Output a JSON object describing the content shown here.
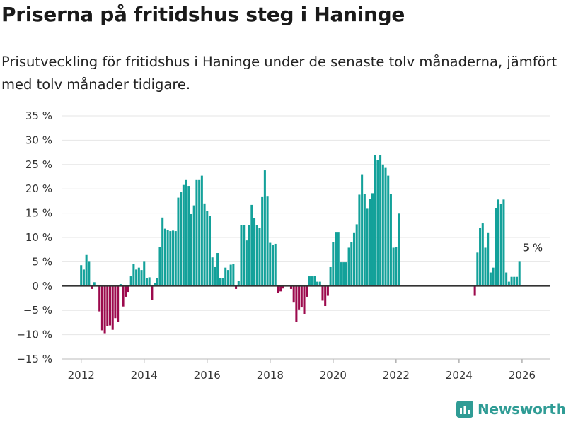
{
  "title": "Priserna på fritidshus steg i Haninge",
  "subtitle": "Prisutveckling för fritidshus i Haninge under de senaste tolv månaderna, jämfört med tolv månader tidigare.",
  "brand": "Newsworthy",
  "colors": {
    "positive": "#13a19a",
    "negative": "#9c0a4d",
    "zero_line": "#333333",
    "grid": "#e6e6e6",
    "brand": "#2f9c95"
  },
  "chart_data": {
    "type": "bar",
    "title": "Priserna på fritidshus steg i Haninge",
    "xlabel": "",
    "ylabel": "",
    "ylim": [
      -15,
      35
    ],
    "xlim": [
      2011.4,
      2026.9
    ],
    "y_ticks": [
      -15,
      -10,
      -5,
      0,
      5,
      10,
      15,
      20,
      25,
      30,
      35
    ],
    "y_tick_labels": [
      "−15 %",
      "−10 %",
      "−5 %",
      "0 %",
      "5 %",
      "10 %",
      "15 %",
      "20 %",
      "25 %",
      "30 %",
      "35 %"
    ],
    "x_ticks": [
      2012,
      2014,
      2016,
      2018,
      2020,
      2022,
      2024,
      2026
    ],
    "x_tick_labels": [
      "2012",
      "2014",
      "2016",
      "2018",
      "2020",
      "2022",
      "2024",
      "2026"
    ],
    "start": 2012.0,
    "step": 0.08333,
    "values": [
      4.3,
      3.4,
      6.4,
      5.0,
      -0.6,
      0.8,
      null,
      -5.2,
      -9.1,
      -9.7,
      -8.3,
      -8.1,
      -9.0,
      -6.6,
      -7.3,
      0.4,
      -4.2,
      -2.2,
      -1.2,
      2.0,
      4.5,
      3.4,
      3.8,
      3.3,
      5.0,
      1.6,
      1.8,
      -2.8,
      0.7,
      1.6,
      8.0,
      14.1,
      11.8,
      11.6,
      11.3,
      11.4,
      11.3,
      18.2,
      19.3,
      20.8,
      21.8,
      20.6,
      14.8,
      16.6,
      21.8,
      21.8,
      22.7,
      17.0,
      15.5,
      14.4,
      5.9,
      3.9,
      6.8,
      1.6,
      1.7,
      3.8,
      3.3,
      4.4,
      4.5,
      -0.6,
      1.1,
      12.5,
      12.6,
      9.4,
      12.6,
      16.7,
      14.0,
      12.6,
      12.0,
      18.3,
      23.8,
      18.4,
      8.9,
      8.4,
      8.7,
      -1.4,
      -1.1,
      -0.5,
      null,
      0.0,
      -0.6,
      -3.4,
      -7.4,
      -4.8,
      -4.4,
      -5.7,
      -2.2,
      2.0,
      2.0,
      2.1,
      0.9,
      0.9,
      -3.0,
      -4.1,
      -2.0,
      3.9,
      9.0,
      11.0,
      11.0,
      4.9,
      4.9,
      4.9,
      7.9,
      9.0,
      10.9,
      12.7,
      18.8,
      23.0,
      19.0,
      15.9,
      17.9,
      19.1,
      27.0,
      25.9,
      26.9,
      25.0,
      24.3,
      22.7,
      19.0,
      7.9,
      8.0,
      14.9,
      null,
      null,
      null,
      null,
      null,
      null,
      null,
      null,
      null,
      null,
      null,
      null,
      null,
      null,
      null,
      null,
      null,
      null,
      null,
      null,
      null,
      null,
      null,
      null,
      null,
      null,
      null,
      null,
      -2.0,
      6.9,
      11.9,
      12.9,
      7.9,
      10.9,
      2.8,
      3.8,
      16.0,
      17.8,
      16.9,
      17.8,
      2.8,
      0.9,
      1.9,
      1.9,
      1.9,
      5.0
    ],
    "annotation": {
      "x": 2026.33,
      "value": 5,
      "text": "5 %"
    }
  }
}
